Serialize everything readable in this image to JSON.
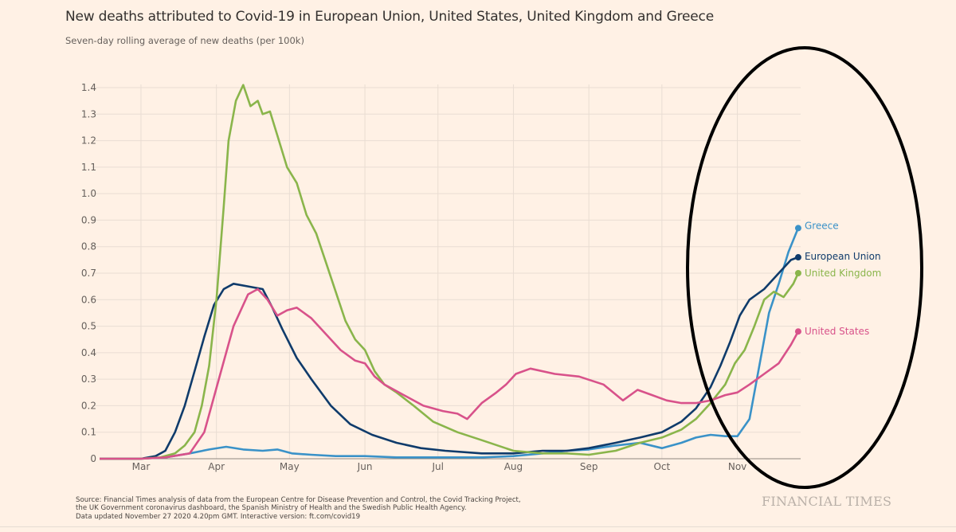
{
  "header": {
    "title": "New deaths attributed to Covid-19 in European Union, United States, United Kingdom and Greece",
    "subtitle": "Seven-day rolling average of new deaths (per 100k)"
  },
  "footer": {
    "source_lines": [
      "Source: Financial Times analysis of data from the European Centre for Disease Prevention and Control, the Covid Tracking Project,",
      "the UK Government coronavirus dashboard, the Spanish Ministry of Health and the Swedish Public Health Agency.",
      "Data updated November 27 2020 4.20pm GMT. Interactive version: ft.com/covid19"
    ],
    "brand": "FINANCIAL TIMES"
  },
  "annotation": {
    "type": "hand-drawn oval",
    "color": "#000000",
    "highlights": "Oct–Nov rise"
  },
  "chart_data": {
    "type": "line",
    "title": "New deaths attributed to Covid-19 in European Union, United States, United Kingdom and Greece",
    "subtitle": "Seven-day rolling average of new deaths (per 100k)",
    "xlabel": "",
    "ylabel": "",
    "x_unit": "days since Mar 1 2020",
    "x_ticks": [
      {
        "label": "Mar",
        "x": 0
      },
      {
        "label": "Apr",
        "x": 31
      },
      {
        "label": "May",
        "x": 61
      },
      {
        "label": "Jun",
        "x": 92
      },
      {
        "label": "Jul",
        "x": 122
      },
      {
        "label": "Aug",
        "x": 153
      },
      {
        "label": "Sep",
        "x": 184
      },
      {
        "label": "Oct",
        "x": 214
      },
      {
        "label": "Nov",
        "x": 245
      }
    ],
    "xlim": [
      -17,
      271
    ],
    "y_ticks": [
      0,
      0.1,
      0.2,
      0.3,
      0.4,
      0.5,
      0.6,
      0.7,
      0.8,
      0.9,
      1.0,
      1.1,
      1.2,
      1.3,
      1.4
    ],
    "y_tick_labels": [
      "0",
      "0.1",
      "0.2",
      "0.3",
      "0.4",
      "0.5",
      "0.6",
      "0.7",
      "0.8",
      "0.9",
      "1.0",
      "1.1",
      "1.2",
      "1.3",
      "1.4"
    ],
    "ylim": [
      0,
      1.4
    ],
    "grid": true,
    "legend": "direct labels at line ends (right)",
    "series": [
      {
        "name": "Greece",
        "color": "#3a92c8",
        "x": [
          -17,
          0,
          10,
          20,
          28,
          35,
          42,
          50,
          56,
          62,
          70,
          80,
          92,
          105,
          122,
          140,
          153,
          165,
          175,
          184,
          195,
          205,
          214,
          222,
          228,
          234,
          240,
          245,
          250,
          254,
          258,
          262,
          266,
          270
        ],
        "values": [
          0,
          0,
          0.005,
          0.02,
          0.035,
          0.045,
          0.035,
          0.03,
          0.035,
          0.02,
          0.015,
          0.01,
          0.01,
          0.005,
          0.005,
          0.005,
          0.01,
          0.02,
          0.03,
          0.035,
          0.05,
          0.06,
          0.04,
          0.06,
          0.08,
          0.09,
          0.085,
          0.085,
          0.15,
          0.35,
          0.55,
          0.66,
          0.78,
          0.87
        ]
      },
      {
        "name": "European Union",
        "color": "#0f3b6b",
        "x": [
          -17,
          0,
          6,
          10,
          14,
          18,
          22,
          26,
          30,
          34,
          38,
          44,
          50,
          54,
          58,
          64,
          70,
          78,
          86,
          95,
          105,
          115,
          125,
          140,
          153,
          165,
          175,
          184,
          195,
          205,
          214,
          222,
          228,
          234,
          238,
          242,
          246,
          250,
          256,
          262,
          267,
          270
        ],
        "values": [
          0,
          0,
          0.01,
          0.03,
          0.1,
          0.2,
          0.33,
          0.46,
          0.58,
          0.64,
          0.66,
          0.65,
          0.64,
          0.57,
          0.49,
          0.38,
          0.3,
          0.2,
          0.13,
          0.09,
          0.06,
          0.04,
          0.03,
          0.02,
          0.02,
          0.03,
          0.03,
          0.04,
          0.06,
          0.08,
          0.1,
          0.14,
          0.19,
          0.27,
          0.35,
          0.44,
          0.54,
          0.6,
          0.64,
          0.7,
          0.75,
          0.76
        ]
      },
      {
        "name": "United Kingdom",
        "color": "#8ab54b",
        "x": [
          -17,
          0,
          8,
          14,
          18,
          22,
          25,
          28,
          31,
          34,
          36,
          39,
          42,
          45,
          48,
          50,
          53,
          56,
          60,
          64,
          68,
          72,
          76,
          80,
          84,
          88,
          92,
          96,
          100,
          105,
          112,
          120,
          130,
          140,
          153,
          165,
          175,
          184,
          195,
          205,
          214,
          222,
          228,
          234,
          240,
          244,
          248,
          252,
          256,
          260,
          264,
          268,
          270
        ],
        "values": [
          0,
          0,
          0.005,
          0.02,
          0.05,
          0.1,
          0.2,
          0.35,
          0.6,
          0.95,
          1.2,
          1.35,
          1.41,
          1.33,
          1.35,
          1.3,
          1.31,
          1.22,
          1.1,
          1.04,
          0.92,
          0.85,
          0.74,
          0.63,
          0.52,
          0.45,
          0.41,
          0.33,
          0.28,
          0.25,
          0.2,
          0.14,
          0.1,
          0.07,
          0.03,
          0.02,
          0.02,
          0.015,
          0.03,
          0.06,
          0.08,
          0.11,
          0.15,
          0.21,
          0.28,
          0.36,
          0.41,
          0.5,
          0.6,
          0.63,
          0.61,
          0.66,
          0.7
        ]
      },
      {
        "name": "United States",
        "color": "#d8528a",
        "x": [
          -17,
          0,
          10,
          20,
          26,
          32,
          38,
          44,
          48,
          52,
          56,
          60,
          64,
          70,
          76,
          82,
          88,
          92,
          96,
          100,
          108,
          116,
          124,
          130,
          134,
          140,
          146,
          150,
          154,
          160,
          170,
          180,
          190,
          198,
          204,
          210,
          216,
          222,
          228,
          234,
          240,
          245,
          250,
          256,
          262,
          267,
          270
        ],
        "values": [
          0,
          0,
          0.005,
          0.02,
          0.1,
          0.3,
          0.5,
          0.62,
          0.64,
          0.6,
          0.54,
          0.56,
          0.57,
          0.53,
          0.47,
          0.41,
          0.37,
          0.36,
          0.31,
          0.28,
          0.24,
          0.2,
          0.18,
          0.17,
          0.15,
          0.21,
          0.25,
          0.28,
          0.32,
          0.34,
          0.32,
          0.31,
          0.28,
          0.22,
          0.26,
          0.24,
          0.22,
          0.21,
          0.21,
          0.22,
          0.24,
          0.25,
          0.28,
          0.32,
          0.36,
          0.43,
          0.48
        ]
      }
    ]
  }
}
